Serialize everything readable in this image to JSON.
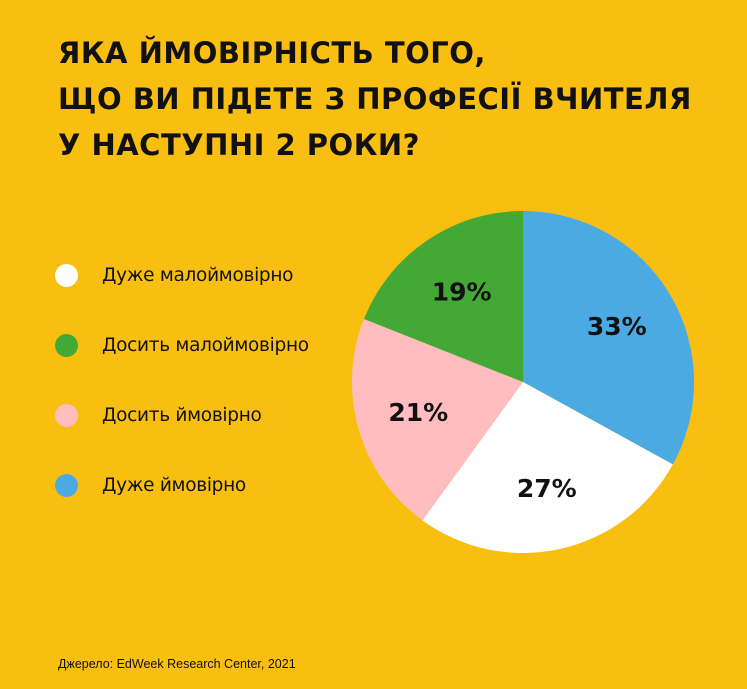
{
  "title": "ЯКА ЙМОВІРНІСТЬ ТОГО,\nЩО ВИ ПІДЕТЕ З ПРОФЕСІЇ ВЧИТЕЛЯ\nУ НАСТУПНІ 2 РОКИ?",
  "source": "Джерело: EdWeek Research Center, 2021",
  "colors": {
    "background": "#F9BF10",
    "text": "#111111"
  },
  "chart_data": {
    "type": "pie",
    "title": "ЯКА ЙМОВІРНІСТЬ ТОГО, ЩО ВИ ПІДЕТЕ З ПРОФЕСІЇ ВЧИТЕЛЯ У НАСТУПНІ 2 РОКИ?",
    "legend_position": "left",
    "slices": [
      {
        "label": "Дуже малоймовірно",
        "value": 27,
        "value_label": "27%",
        "color": "#FFFFFF"
      },
      {
        "label": "Досить малоймовірно",
        "value": 19,
        "value_label": "19%",
        "color": "#44A837"
      },
      {
        "label": "Досить ймовірно",
        "value": 21,
        "value_label": "21%",
        "color": "#FFBDBF"
      },
      {
        "label": "Дуже ймовірно",
        "value": 33,
        "value_label": "33%",
        "color": "#4BAAE1"
      }
    ],
    "draw_order": [
      3,
      0,
      2,
      1
    ]
  }
}
